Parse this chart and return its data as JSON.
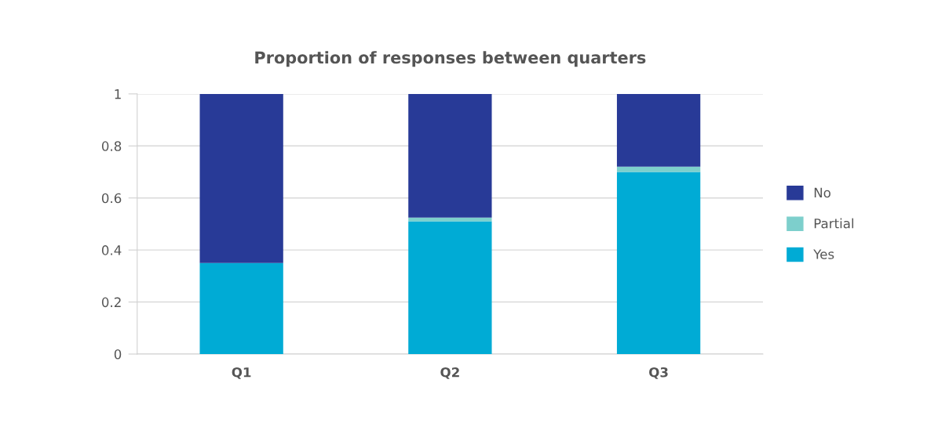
{
  "chart_data": {
    "type": "bar",
    "title": "Proportion of responses between quarters",
    "categories": [
      "Q1",
      "Q2",
      "Q3"
    ],
    "stacked": true,
    "series": [
      {
        "name": "Yes",
        "color": "#00abd5",
        "values": [
          0.35,
          0.51,
          0.7
        ]
      },
      {
        "name": "Partial",
        "color": "#7dcfcc",
        "values": [
          0,
          0.015,
          0.02
        ]
      },
      {
        "name": "No",
        "color": "#283a97",
        "values": [
          0.65,
          0.475,
          0.28
        ]
      }
    ],
    "ylim": [
      0,
      1
    ],
    "yticks": [
      0,
      0.2,
      0.4,
      0.6,
      0.8,
      1
    ],
    "grid": "y",
    "legend": "right"
  }
}
